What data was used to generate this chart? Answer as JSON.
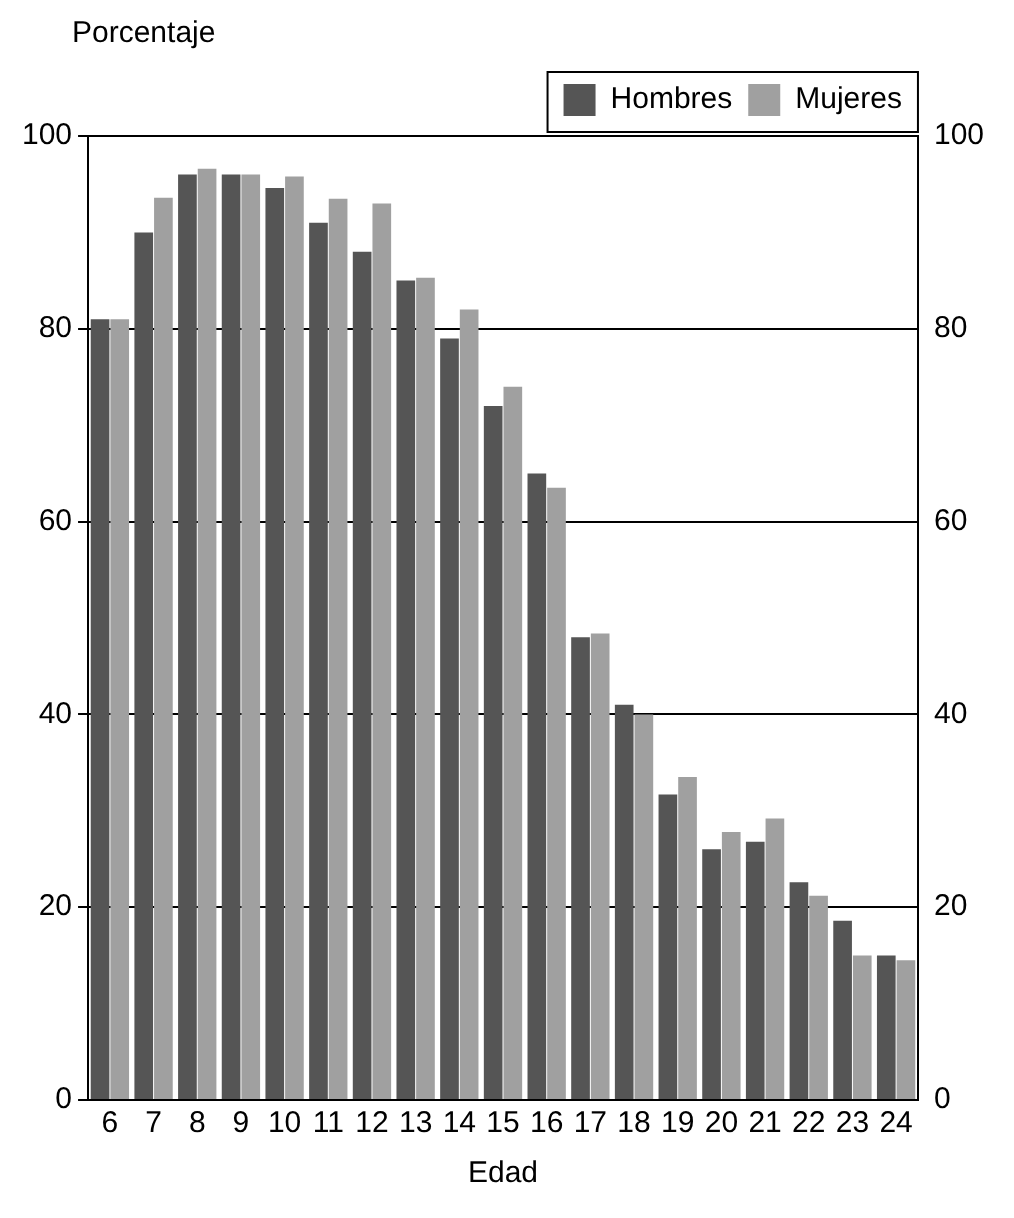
{
  "chart_data": {
    "type": "bar",
    "xlabel": "Edad",
    "ylabel": "Porcentaje",
    "categories": [
      "6",
      "7",
      "8",
      "9",
      "10",
      "11",
      "12",
      "13",
      "14",
      "15",
      "16",
      "17",
      "18",
      "19",
      "20",
      "21",
      "22",
      "23",
      "24"
    ],
    "series": [
      {
        "name": "Hombres",
        "color": "#555555",
        "values": [
          81,
          90,
          96,
          96,
          94.6,
          91,
          88,
          85,
          79,
          72,
          65,
          48,
          41,
          31.7,
          26,
          26.8,
          22.6,
          18.6,
          15
        ]
      },
      {
        "name": "Mujeres",
        "color": "#a0a0a0",
        "values": [
          81,
          93.6,
          96.6,
          96,
          95.8,
          93.5,
          93,
          85.3,
          82,
          74,
          63.5,
          48.4,
          40,
          33.5,
          27.8,
          29.2,
          21.2,
          15,
          14.5
        ]
      }
    ],
    "ylim": [
      0,
      100
    ],
    "yticks": [
      0,
      20,
      40,
      60,
      80,
      100
    ],
    "y2lim": [
      0,
      100
    ],
    "y2ticks": [
      0,
      20,
      40,
      60,
      80,
      100
    ],
    "grid": "y",
    "legend": "top right"
  }
}
